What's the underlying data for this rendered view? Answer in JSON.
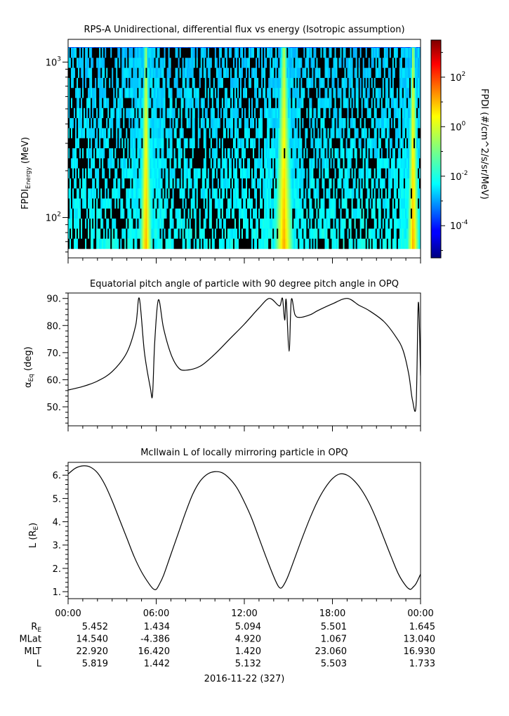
{
  "chart_data": [
    {
      "type": "heatmap",
      "title": "RPS-A Unidirectional, differential flux vs energy (Isotropic assumption)",
      "ylabel_main": "FPDI",
      "ylabel_sub": "Energy",
      "ylabel_unit": " (MeV)",
      "yscale": "log",
      "ylim": [
        55,
        1400
      ],
      "yticks": [
        {
          "base": "10",
          "exp": "2",
          "value": 100
        },
        {
          "base": "10",
          "exp": "3",
          "value": 1000
        }
      ],
      "colorbar": {
        "label": "FPDI (#/cm^2/s/sr/MeV)",
        "scale": "log",
        "range_exp": [
          -5.3,
          3.5
        ],
        "ticks": [
          {
            "base": "10",
            "exp": "2"
          },
          {
            "base": "10",
            "exp": "0"
          },
          {
            "base": "10",
            "exp": "-2"
          },
          {
            "base": "10",
            "exp": "-4"
          }
        ],
        "colormap": "jet"
      }
    },
    {
      "type": "line",
      "title": "Equatorial pitch angle of particle with 90 degree pitch angle in OPQ",
      "ylabel_main": "α",
      "ylabel_sub": "Eq",
      "ylabel_unit": " (deg)",
      "ylim": [
        43,
        92
      ],
      "yticks": [
        "50.",
        "60.",
        "70.",
        "80.",
        "90."
      ],
      "ytick_values": [
        50,
        60,
        70,
        80,
        90
      ],
      "x_hours": [
        0,
        1,
        2,
        3,
        4,
        4.6,
        4.85,
        5.2,
        5.6,
        5.75,
        5.9,
        6.15,
        6.5,
        7,
        7.5,
        8,
        9,
        10,
        11,
        12,
        13,
        13.7,
        14.3,
        14.45,
        14.6,
        14.75,
        14.85,
        15.05,
        15.2,
        15.45,
        15.8,
        16.5,
        17,
        18,
        19,
        19.8,
        20.5,
        21.5,
        22.3,
        22.8,
        23.2,
        23.45,
        23.7,
        23.85,
        24
      ],
      "y": [
        56.2,
        57.5,
        59.5,
        63,
        70,
        80,
        90,
        70,
        57,
        54.5,
        74,
        89.5,
        79,
        69.5,
        64.5,
        63.5,
        65,
        69.5,
        75,
        80.5,
        86.5,
        90,
        87.5,
        87.5,
        90,
        82,
        89.5,
        70.5,
        89.5,
        84,
        83,
        84,
        85.5,
        88,
        90,
        87.5,
        85.5,
        81.5,
        76,
        71,
        62,
        52.5,
        51,
        88.5,
        61.5
      ]
    },
    {
      "type": "line",
      "title": "McIlwain L of locally mirroring particle in OPQ",
      "ylabel_main": "L (R",
      "ylabel_sub": "E",
      "ylabel_unit": ")",
      "ylim": [
        0.7,
        6.55
      ],
      "yticks": [
        "1.",
        "2.",
        "3.",
        "4.",
        "5.",
        "6."
      ],
      "ytick_values": [
        1,
        2,
        3,
        4,
        5,
        6
      ],
      "x_hours": [
        0,
        0.5,
        1,
        1.5,
        2,
        2.5,
        3,
        3.5,
        4,
        4.5,
        5,
        5.5,
        5.8,
        6,
        6.2,
        6.5,
        7,
        7.5,
        8,
        8.5,
        9,
        9.5,
        10,
        10.5,
        11,
        11.5,
        12,
        12.5,
        13,
        13.5,
        14,
        14.3,
        14.5,
        14.7,
        15,
        15.5,
        16,
        16.5,
        17,
        17.5,
        18,
        18.5,
        19,
        19.5,
        20,
        20.5,
        21,
        21.5,
        22,
        22.5,
        23,
        23.3,
        23.5,
        23.7,
        24
      ],
      "y": [
        6.05,
        6.3,
        6.4,
        6.35,
        6.1,
        5.6,
        4.9,
        4.1,
        3.3,
        2.5,
        1.85,
        1.35,
        1.12,
        1.1,
        1.3,
        1.7,
        2.6,
        3.5,
        4.4,
        5.2,
        5.75,
        6.05,
        6.15,
        6.1,
        5.85,
        5.45,
        4.85,
        4.15,
        3.3,
        2.45,
        1.65,
        1.25,
        1.15,
        1.3,
        1.7,
        2.55,
        3.4,
        4.2,
        4.9,
        5.45,
        5.85,
        6.05,
        6.0,
        5.75,
        5.35,
        4.8,
        4.1,
        3.3,
        2.5,
        1.75,
        1.25,
        1.1,
        1.2,
        1.35,
        1.75
      ]
    }
  ],
  "time_axis": {
    "ticks": [
      "00:00",
      "06:00",
      "12:00",
      "18:00",
      "00:00"
    ],
    "date_label": "2016-11-22 (327)"
  },
  "ephemeris": {
    "rows": [
      {
        "label_main": "R",
        "label_sub": "E",
        "values": [
          "5.452",
          "1.434",
          "5.094",
          "5.501",
          "1.645"
        ]
      },
      {
        "label_main": "MLat",
        "label_sub": "",
        "values": [
          "14.540",
          "-4.386",
          "4.920",
          "1.067",
          "13.040"
        ]
      },
      {
        "label_main": "MLT",
        "label_sub": "",
        "values": [
          "22.920",
          "16.420",
          "1.420",
          "23.060",
          "16.930"
        ]
      },
      {
        "label_main": "L",
        "label_sub": "",
        "values": [
          "5.819",
          "1.442",
          "5.132",
          "5.503",
          "1.733"
        ]
      }
    ]
  },
  "colors": {
    "line": "#000000",
    "axes": "#000000",
    "gap": "#000000"
  }
}
